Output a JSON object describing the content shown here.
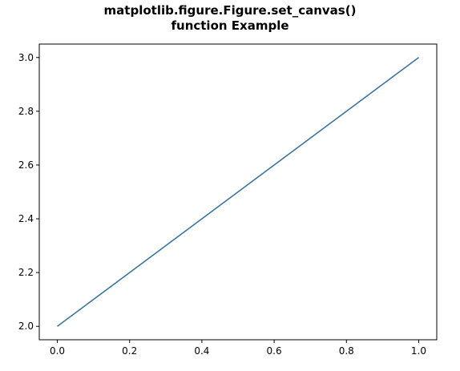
{
  "chart_data": {
    "type": "line",
    "title_lines": [
      "matplotlib.figure.Figure.set_canvas()",
      "function Example"
    ],
    "xlabel": "",
    "ylabel": "",
    "x": [
      0.0,
      1.0
    ],
    "series": [
      {
        "values": [
          2.0,
          3.0
        ],
        "color": "#3d75a2"
      }
    ],
    "xlim": [
      -0.05,
      1.05
    ],
    "ylim": [
      1.95,
      3.05
    ],
    "xticks": [
      0.0,
      0.2,
      0.4,
      0.6,
      0.8,
      1.0
    ],
    "xtick_labels": [
      "0.0",
      "0.2",
      "0.4",
      "0.6",
      "0.8",
      "1.0"
    ],
    "yticks": [
      2.0,
      2.2,
      2.4,
      2.6,
      2.8,
      3.0
    ],
    "ytick_labels": [
      "2.0",
      "2.2",
      "2.4",
      "2.6",
      "2.8",
      "3.0"
    ],
    "grid": false,
    "legend": "none"
  }
}
